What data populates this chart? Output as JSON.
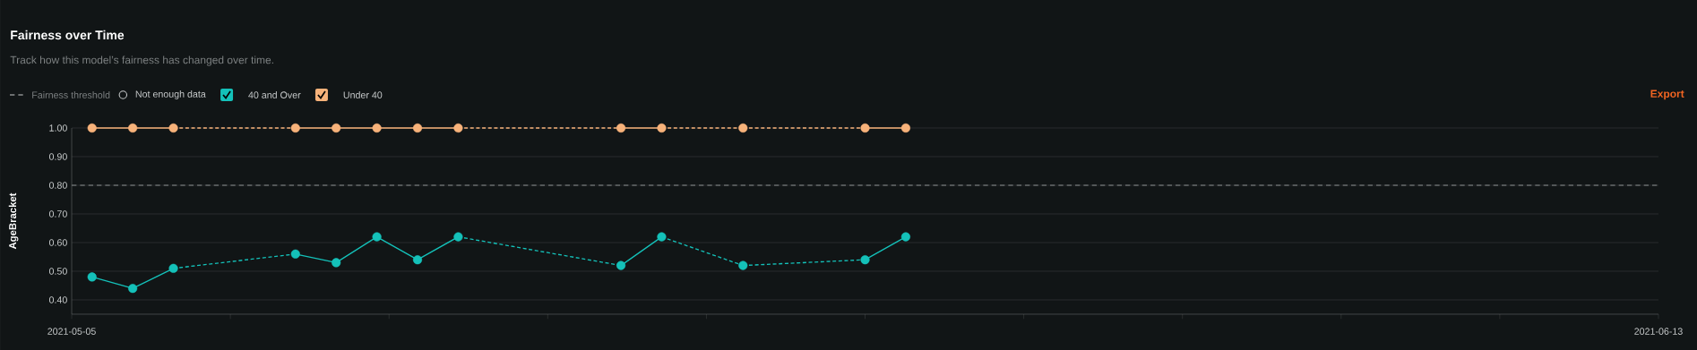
{
  "chart_data": {
    "type": "line",
    "title": "Fairness over Time",
    "subtitle": "Track how this model’s fairness has changed over time.",
    "ylabel": "AgeBracket",
    "annotations": [
      "Not enough data",
      "Export"
    ],
    "xlim": [
      "2021-05-05T00:00",
      "2021-06-13T00:00"
    ],
    "xticks": [
      {
        "value": "2021-05-05T00:00",
        "label": "2021-05-05"
      },
      {
        "value": "2021-05-08T21:36",
        "label": null
      },
      {
        "value": "2021-05-12T19:12",
        "label": null
      },
      {
        "value": "2021-05-16T16:48",
        "label": null
      },
      {
        "value": "2021-05-20T14:24",
        "label": null
      },
      {
        "value": "2021-05-24T12:00",
        "label": null
      },
      {
        "value": "2021-05-28T09:36",
        "label": null
      },
      {
        "value": "2021-06-01T07:12",
        "label": null
      },
      {
        "value": "2021-06-05T04:48",
        "label": null
      },
      {
        "value": "2021-06-09T02:24",
        "label": null
      },
      {
        "value": "2021-06-13T00:00",
        "label": "2021-06-13"
      }
    ],
    "ylim": [
      0.35,
      1.0
    ],
    "yticks": [
      {
        "value": 0.4,
        "label": "0.40"
      },
      {
        "value": 0.5,
        "label": "0.50"
      },
      {
        "value": 0.6,
        "label": "0.60"
      },
      {
        "value": 0.7,
        "label": "0.70"
      },
      {
        "value": 0.8,
        "label": "0.80"
      },
      {
        "value": 0.9,
        "label": "0.90"
      },
      {
        "value": 1.0,
        "label": "1.00"
      }
    ],
    "grid": "y",
    "legend": "top left",
    "marker": "circle",
    "x": [
      "2021-05-05T12:00",
      "2021-05-06T12:00",
      "2021-05-07T12:00",
      "2021-05-10T12:00",
      "2021-05-11T12:00",
      "2021-05-12T12:00",
      "2021-05-13T12:00",
      "2021-05-14T12:00",
      "2021-05-18T12:00",
      "2021-05-19T12:00",
      "2021-05-21T12:00",
      "2021-05-24T12:00",
      "2021-05-25T12:00"
    ],
    "series": [
      {
        "name": "40 and Over",
        "color": "#14c1b9",
        "values": [
          0.48,
          0.44,
          0.51,
          0.56,
          0.53,
          0.62,
          0.54,
          0.62,
          0.52,
          0.62,
          0.52,
          0.54,
          0.62
        ]
      },
      {
        "name": "Under 40",
        "color": "#f7b27a",
        "values": [
          1.0,
          1.0,
          1.0,
          1.0,
          1.0,
          1.0,
          1.0,
          1.0,
          1.0,
          1.0,
          1.0,
          1.0,
          1.0
        ]
      }
    ],
    "ref_lines": [
      {
        "axis": "y",
        "value": 0.8,
        "label": "Fairness threshold",
        "color": "#8a8d8e",
        "line_style": "dashed"
      }
    ]
  }
}
